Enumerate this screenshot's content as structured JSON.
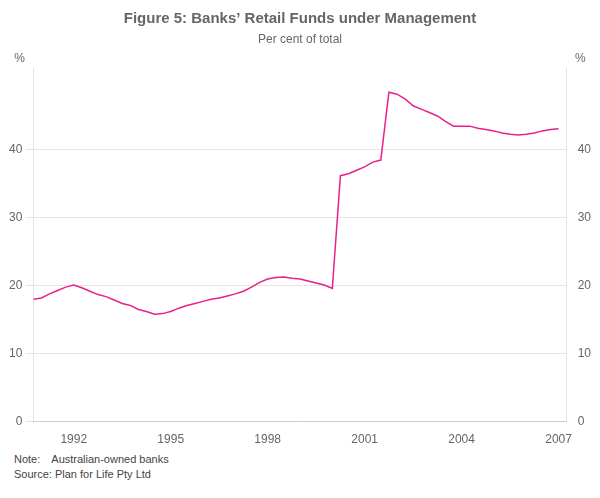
{
  "chart_data": {
    "type": "line",
    "title": "Figure 5: Banks’ Retail Funds under Management",
    "subtitle": "Per cent of total",
    "note": "Note: Australian-owned banks",
    "source": "Source: Plan for Life Pty Ltd",
    "ylabel": "%",
    "y2label": "%",
    "color": "#e8218a",
    "grid": true,
    "xlim": [
      1990.75,
      2007.25
    ],
    "xticks": [
      1992,
      1995,
      1998,
      2001,
      2004,
      2007
    ],
    "ylim": [
      0,
      52
    ],
    "yticks": [
      0,
      10,
      20,
      30,
      40
    ],
    "y2lim": [
      0,
      52
    ],
    "y2ticks": [
      0,
      10,
      20,
      30,
      40
    ],
    "x": [
      1990.75,
      1991.0,
      1991.25,
      1991.5,
      1991.75,
      1992.0,
      1992.25,
      1992.5,
      1992.75,
      1993.0,
      1993.25,
      1993.5,
      1993.75,
      1994.0,
      1994.25,
      1994.5,
      1994.75,
      1995.0,
      1995.25,
      1995.5,
      1995.75,
      1996.0,
      1996.25,
      1996.5,
      1996.75,
      1997.0,
      1997.25,
      1997.5,
      1997.75,
      1998.0,
      1998.25,
      1998.5,
      1998.75,
      1999.0,
      1999.25,
      1999.5,
      1999.75,
      2000.0,
      2000.25,
      2000.5,
      2000.75,
      2001.0,
      2001.25,
      2001.5,
      2001.75,
      2002.0,
      2002.25,
      2002.5,
      2002.75,
      2003.0,
      2003.25,
      2003.5,
      2003.75,
      2004.0,
      2004.25,
      2004.5,
      2004.75,
      2005.0,
      2005.25,
      2005.5,
      2005.75,
      2006.0,
      2006.25,
      2006.5,
      2006.75,
      2007.0
    ],
    "values": [
      18.0,
      18.2,
      18.8,
      19.3,
      19.8,
      20.1,
      19.7,
      19.2,
      18.7,
      18.4,
      17.9,
      17.4,
      17.1,
      16.5,
      16.2,
      15.8,
      15.9,
      16.2,
      16.7,
      17.1,
      17.4,
      17.7,
      18.0,
      18.2,
      18.5,
      18.8,
      19.2,
      19.8,
      20.5,
      21.0,
      21.2,
      21.3,
      21.1,
      21.0,
      20.7,
      20.4,
      20.1,
      19.6,
      36.2,
      36.5,
      37.0,
      37.5,
      38.2,
      38.5,
      48.5,
      48.2,
      47.5,
      46.5,
      46.0,
      45.5,
      45.0,
      44.2,
      43.5,
      43.5,
      43.5,
      43.2,
      43.0,
      42.8,
      42.5,
      42.3,
      42.2,
      42.3,
      42.5,
      42.8,
      43.0,
      43.1
    ]
  }
}
